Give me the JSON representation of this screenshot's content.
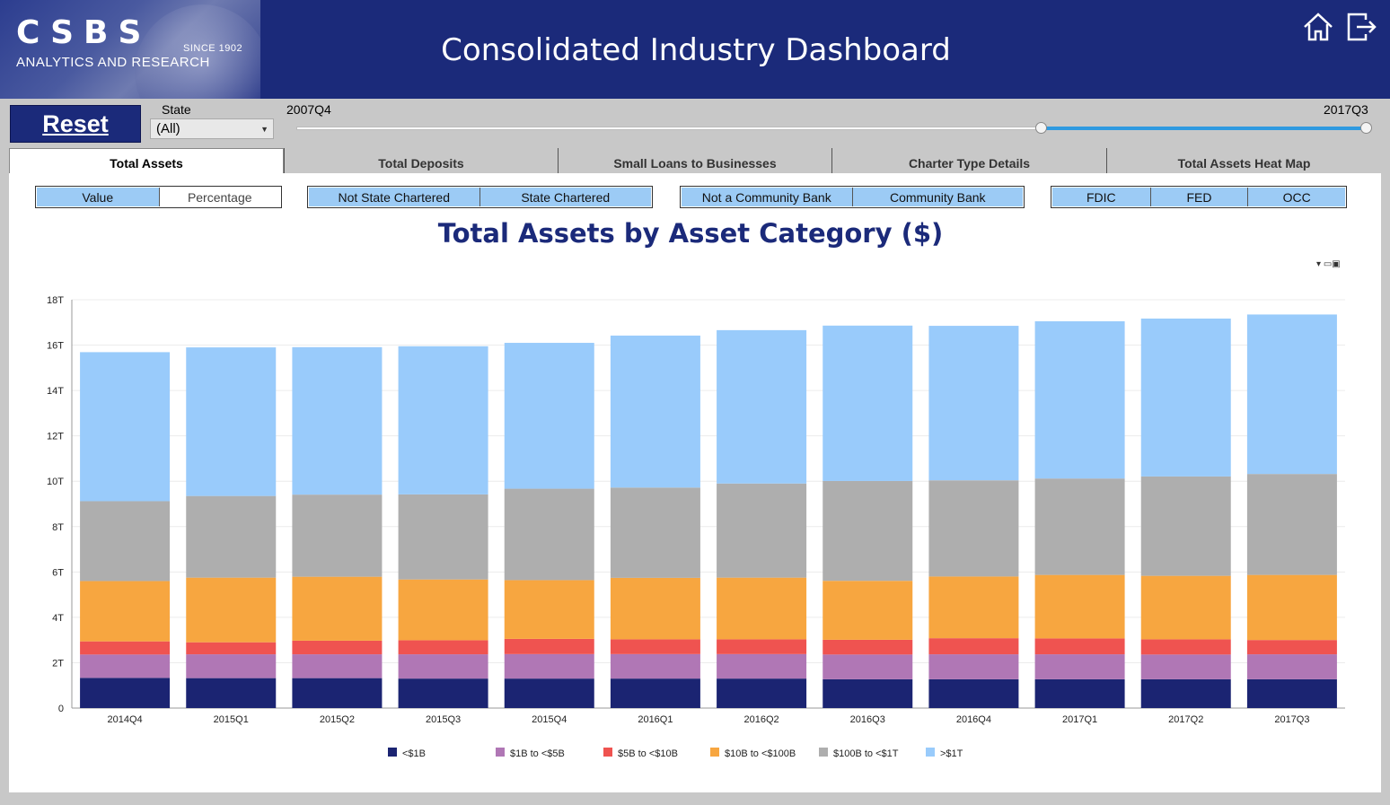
{
  "header": {
    "logo_text": "CSBS",
    "logo_since": "SINCE 1902",
    "logo_sub": "ANALYTICS AND RESEARCH",
    "title": "Consolidated Industry Dashboard",
    "home_icon": "home-icon",
    "exit_icon": "exit-icon"
  },
  "controls": {
    "reset_label": "Reset",
    "state_label": "State",
    "state_value": "(All)",
    "range_start": "2007Q4",
    "range_end": "2017Q3"
  },
  "tabs": [
    {
      "label": "Total Assets",
      "active": true
    },
    {
      "label": "Total Deposits",
      "active": false
    },
    {
      "label": "Small Loans to Businesses",
      "active": false
    },
    {
      "label": "Charter Type Details",
      "active": false
    },
    {
      "label": "Total Assets Heat Map",
      "active": false
    }
  ],
  "filters": {
    "measure": [
      "Value",
      "Percentage"
    ],
    "charter": [
      "Not State Chartered",
      "State Chartered"
    ],
    "community": [
      "Not a Community Bank",
      "Community Bank"
    ],
    "regulator": [
      "FDIC",
      "FED",
      "OCC"
    ]
  },
  "chart_data": {
    "type": "bar",
    "stacked": true,
    "title": "Total Assets by Asset Category ($)",
    "categories": [
      "2014Q4",
      "2015Q1",
      "2015Q2",
      "2015Q3",
      "2015Q4",
      "2016Q1",
      "2016Q2",
      "2016Q3",
      "2016Q4",
      "2017Q1",
      "2017Q2",
      "2017Q3"
    ],
    "y_ticks": [
      "0",
      "2T",
      "4T",
      "6T",
      "8T",
      "10T",
      "12T",
      "14T",
      "16T",
      "18T"
    ],
    "ylim": [
      0,
      18
    ],
    "series": [
      {
        "name": "<$1B",
        "color": "#1b2472",
        "values": [
          1.33,
          1.32,
          1.32,
          1.3,
          1.3,
          1.3,
          1.3,
          1.27,
          1.27,
          1.27,
          1.27,
          1.27
        ]
      },
      {
        "name": "$1B to <$5B",
        "color": "#b077b5",
        "values": [
          1.03,
          1.05,
          1.05,
          1.07,
          1.08,
          1.08,
          1.08,
          1.09,
          1.1,
          1.1,
          1.09,
          1.1
        ]
      },
      {
        "name": "$5B to <$10B",
        "color": "#ef5350",
        "values": [
          0.58,
          0.53,
          0.6,
          0.62,
          0.67,
          0.65,
          0.65,
          0.65,
          0.71,
          0.7,
          0.67,
          0.63
        ]
      },
      {
        "name": "$10B to <$100B",
        "color": "#f7a640",
        "values": [
          2.66,
          2.85,
          2.82,
          2.68,
          2.59,
          2.71,
          2.72,
          2.6,
          2.72,
          2.8,
          2.8,
          2.87
        ]
      },
      {
        "name": "$100B to <$1T",
        "color": "#aeaeae",
        "values": [
          3.52,
          3.6,
          3.62,
          3.75,
          4.03,
          3.98,
          4.15,
          4.4,
          4.24,
          4.25,
          4.38,
          4.45
        ]
      },
      {
        "name": ">$1T",
        "color": "#99cbfb",
        "values": [
          6.57,
          6.55,
          6.5,
          6.53,
          6.43,
          6.7,
          6.76,
          6.85,
          6.81,
          6.93,
          6.96,
          7.03
        ]
      }
    ],
    "legend_position": "bottom",
    "grid": true
  }
}
